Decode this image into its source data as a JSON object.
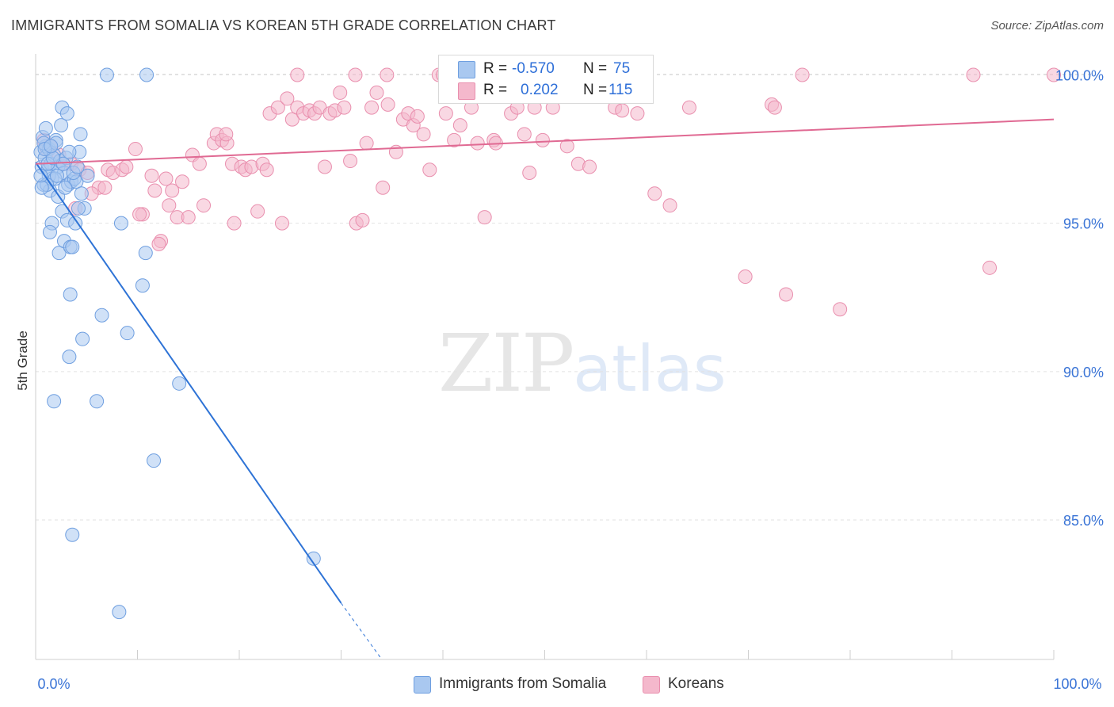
{
  "title": "IMMIGRANTS FROM SOMALIA VS KOREAN 5TH GRADE CORRELATION CHART",
  "source": "Source: ZipAtlas.com",
  "watermark": {
    "zip": "ZIP",
    "atlas": "atlas"
  },
  "legend": {
    "r_label": "R =",
    "n_label": "N =",
    "rows": [
      {
        "r": "-0.570",
        "n": "75",
        "color": "#a9c8f0"
      },
      {
        "r": "0.202",
        "n": "115",
        "color": "#f4b8cc"
      }
    ]
  },
  "bottom_legend": [
    {
      "label": "Immigrants from Somalia",
      "color": "#a9c8f0"
    },
    {
      "label": "Koreans",
      "color": "#f4b8cc"
    }
  ],
  "colors": {
    "blue_fill": "#a9c8f0",
    "blue_stroke": "#6f9fe0",
    "blue_line": "#2e73d6",
    "pink_fill": "#f4b8cc",
    "pink_stroke": "#e98fae",
    "pink_line": "#e06a93",
    "grid": "#e2e2e2",
    "tick_text": "#3a74d6"
  },
  "chart_data": {
    "type": "scatter",
    "title": "IMMIGRANTS FROM SOMALIA VS KOREAN 5TH GRADE CORRELATION CHART",
    "xlabel": "",
    "ylabel": "5th Grade",
    "xlim": [
      0,
      100
    ],
    "ylim": [
      80.3,
      100.6
    ],
    "x_tick_labels": [
      "0.0%",
      "100.0%"
    ],
    "y_ticks": [
      85,
      90,
      95,
      100
    ],
    "y_tick_labels": [
      "85.0%",
      "90.0%",
      "95.0%",
      "100.0%"
    ],
    "grid": true,
    "series": [
      {
        "name": "Immigrants from Somalia",
        "points": [
          [
            0.5,
            97.4
          ],
          [
            0.6,
            96.9
          ],
          [
            0.8,
            96.3
          ],
          [
            0.9,
            97.2
          ],
          [
            1.0,
            97.6
          ],
          [
            1.2,
            96.8
          ],
          [
            1.4,
            96.1
          ],
          [
            1.5,
            97.0
          ],
          [
            0.7,
            97.9
          ],
          [
            1.0,
            98.2
          ],
          [
            1.3,
            97.5
          ],
          [
            1.6,
            96.5
          ],
          [
            1.8,
            97.3
          ],
          [
            2.0,
            97.8
          ],
          [
            2.2,
            96.9
          ],
          [
            2.5,
            98.3
          ],
          [
            2.2,
            95.9
          ],
          [
            2.4,
            97.1
          ],
          [
            2.8,
            96.7
          ],
          [
            3.0,
            97.2
          ],
          [
            3.2,
            96.3
          ],
          [
            3.5,
            96.4
          ],
          [
            3.8,
            96.5
          ],
          [
            4.0,
            96.4
          ],
          [
            4.3,
            97.4
          ],
          [
            4.5,
            96.0
          ],
          [
            4.8,
            95.5
          ],
          [
            5.1,
            96.6
          ],
          [
            2.6,
            98.9
          ],
          [
            3.1,
            98.7
          ],
          [
            4.4,
            98.0
          ],
          [
            2.0,
            97.7
          ],
          [
            1.3,
            96.6
          ],
          [
            1.6,
            95.0
          ],
          [
            1.4,
            94.7
          ],
          [
            2.3,
            94.0
          ],
          [
            2.6,
            95.4
          ],
          [
            2.8,
            94.4
          ],
          [
            3.1,
            95.1
          ],
          [
            3.4,
            94.2
          ],
          [
            3.6,
            94.2
          ],
          [
            3.9,
            95.0
          ],
          [
            4.2,
            95.5
          ],
          [
            8.4,
            95.0
          ],
          [
            10.5,
            92.9
          ],
          [
            10.8,
            94.0
          ],
          [
            3.4,
            92.6
          ],
          [
            6.5,
            91.9
          ],
          [
            9.0,
            91.3
          ],
          [
            4.6,
            91.1
          ],
          [
            3.3,
            90.5
          ],
          [
            1.8,
            89.0
          ],
          [
            6.0,
            89.0
          ],
          [
            14.1,
            89.6
          ],
          [
            11.6,
            87.0
          ],
          [
            3.6,
            84.5
          ],
          [
            27.3,
            83.7
          ],
          [
            8.2,
            81.9
          ],
          [
            7.0,
            100.0
          ],
          [
            10.9,
            100.0
          ],
          [
            1.2,
            97.0
          ],
          [
            0.8,
            97.7
          ],
          [
            1.9,
            96.5
          ],
          [
            2.7,
            97.0
          ],
          [
            3.3,
            97.4
          ],
          [
            1.1,
            96.3
          ],
          [
            0.5,
            96.6
          ],
          [
            1.7,
            97.2
          ],
          [
            2.1,
            96.6
          ],
          [
            3.7,
            96.7
          ],
          [
            0.9,
            97.5
          ],
          [
            1.5,
            97.6
          ],
          [
            2.9,
            96.2
          ],
          [
            4.1,
            96.9
          ],
          [
            0.6,
            96.2
          ]
        ],
        "trend": {
          "x0": 0,
          "y0": 97.05,
          "x1": 30,
          "y1": 82.2,
          "dashed_to_x": 34,
          "dashed_to_y": 80.3
        }
      },
      {
        "name": "Koreans",
        "points": [
          [
            0.8,
            97.8
          ],
          [
            1.1,
            97.5
          ],
          [
            1.4,
            97.6
          ],
          [
            2.3,
            97.3
          ],
          [
            2.7,
            97.0
          ],
          [
            3.5,
            97.0
          ],
          [
            4.3,
            96.8
          ],
          [
            5.1,
            96.7
          ],
          [
            6.2,
            96.2
          ],
          [
            7.1,
            96.8
          ],
          [
            7.6,
            96.7
          ],
          [
            8.5,
            96.8
          ],
          [
            9.8,
            97.5
          ],
          [
            10.5,
            95.3
          ],
          [
            11.4,
            96.6
          ],
          [
            11.7,
            96.1
          ],
          [
            12.3,
            94.4
          ],
          [
            12.1,
            94.3
          ],
          [
            13.1,
            95.6
          ],
          [
            13.4,
            96.1
          ],
          [
            13.9,
            95.2
          ],
          [
            14.4,
            96.4
          ],
          [
            15.4,
            97.3
          ],
          [
            16.1,
            97.0
          ],
          [
            16.5,
            95.6
          ],
          [
            17.5,
            97.7
          ],
          [
            17.8,
            98.0
          ],
          [
            18.3,
            97.8
          ],
          [
            18.8,
            97.7
          ],
          [
            19.3,
            97.0
          ],
          [
            19.5,
            95.0
          ],
          [
            20.2,
            96.9
          ],
          [
            20.6,
            96.8
          ],
          [
            21.2,
            96.9
          ],
          [
            21.8,
            95.4
          ],
          [
            22.3,
            97.0
          ],
          [
            22.7,
            96.8
          ],
          [
            23.0,
            98.7
          ],
          [
            23.8,
            98.9
          ],
          [
            24.2,
            95.0
          ],
          [
            24.7,
            99.2
          ],
          [
            25.2,
            98.5
          ],
          [
            25.7,
            98.9
          ],
          [
            26.3,
            98.7
          ],
          [
            26.9,
            98.8
          ],
          [
            27.4,
            98.7
          ],
          [
            27.9,
            98.9
          ],
          [
            28.4,
            96.9
          ],
          [
            28.9,
            98.7
          ],
          [
            29.4,
            98.8
          ],
          [
            29.9,
            99.4
          ],
          [
            30.3,
            98.9
          ],
          [
            30.9,
            97.1
          ],
          [
            31.5,
            95.0
          ],
          [
            32.1,
            95.1
          ],
          [
            32.5,
            97.7
          ],
          [
            33.0,
            98.9
          ],
          [
            33.5,
            99.4
          ],
          [
            34.1,
            96.2
          ],
          [
            34.6,
            99.0
          ],
          [
            35.4,
            97.4
          ],
          [
            36.1,
            98.5
          ],
          [
            36.6,
            98.7
          ],
          [
            37.1,
            98.3
          ],
          [
            37.5,
            98.6
          ],
          [
            38.1,
            98.0
          ],
          [
            38.7,
            96.8
          ],
          [
            40.3,
            98.7
          ],
          [
            41.1,
            97.8
          ],
          [
            41.7,
            98.3
          ],
          [
            42.8,
            98.9
          ],
          [
            43.4,
            97.7
          ],
          [
            44.1,
            95.2
          ],
          [
            45.0,
            97.8
          ],
          [
            45.2,
            97.7
          ],
          [
            46.7,
            98.7
          ],
          [
            47.3,
            98.9
          ],
          [
            48.0,
            98.0
          ],
          [
            48.5,
            96.7
          ],
          [
            49.0,
            98.9
          ],
          [
            49.8,
            97.8
          ],
          [
            50.8,
            98.9
          ],
          [
            52.2,
            97.6
          ],
          [
            53.3,
            97.0
          ],
          [
            54.4,
            96.9
          ],
          [
            55.5,
            99.4
          ],
          [
            56.9,
            98.9
          ],
          [
            57.6,
            98.8
          ],
          [
            59.1,
            98.7
          ],
          [
            60.8,
            96.0
          ],
          [
            62.3,
            95.6
          ],
          [
            64.2,
            98.9
          ],
          [
            69.7,
            93.2
          ],
          [
            72.3,
            99.0
          ],
          [
            72.6,
            98.9
          ],
          [
            73.7,
            92.6
          ],
          [
            75.3,
            100.0
          ],
          [
            79.0,
            92.1
          ],
          [
            92.1,
            100.0
          ],
          [
            93.7,
            93.5
          ],
          [
            100.0,
            100.0
          ],
          [
            31.4,
            100.0
          ],
          [
            34.5,
            100.0
          ],
          [
            39.6,
            100.0
          ],
          [
            40.0,
            100.0
          ],
          [
            46.3,
            99.5
          ],
          [
            3.9,
            95.5
          ],
          [
            5.5,
            96.0
          ],
          [
            8.9,
            96.9
          ],
          [
            10.2,
            95.3
          ],
          [
            15.0,
            95.2
          ],
          [
            25.7,
            100.0
          ],
          [
            18.7,
            98.0
          ],
          [
            6.8,
            96.2
          ],
          [
            12.8,
            96.5
          ]
        ],
        "trend": {
          "x0": 0,
          "y0": 97.0,
          "x1": 100,
          "y1": 98.5
        }
      }
    ]
  }
}
